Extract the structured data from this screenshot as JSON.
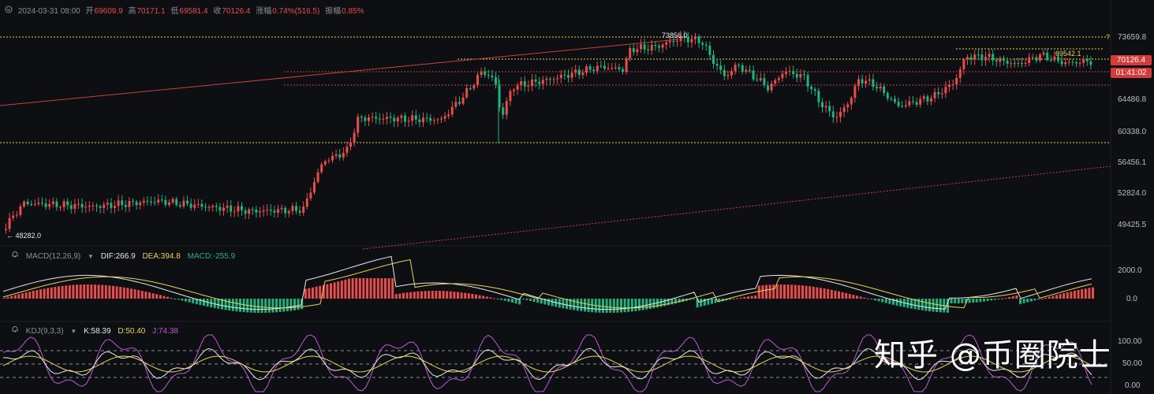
{
  "header": {
    "datetime": "2024-03-31 08:00",
    "open_label": "开",
    "open": "69609.9",
    "high_label": "高",
    "high": "70171.1",
    "low_label": "低",
    "low": "69581.4",
    "close_label": "收",
    "close": "70126.4",
    "change_label": "涨幅",
    "change": "0.74%(516.5)",
    "amp_label": "振幅",
    "amp": "0.85%"
  },
  "price_axis": {
    "ticks": [
      "73659.8",
      "64486.8",
      "60338.0",
      "56456.1",
      "52824.0",
      "49425.5"
    ],
    "current_price": "70126.4",
    "countdown": "01:41:02"
  },
  "annotations": {
    "high_marker": "73856.0",
    "low_marker": "← 48282.0",
    "right_level": "69542.1",
    "question_mark": "?"
  },
  "macd": {
    "name": "MACD(12,26,9)",
    "dif": "DIF:266.9",
    "dea": "DEA:394.8",
    "macd": "MACD:-255.9",
    "ticks": [
      "2000.0",
      "0.0"
    ]
  },
  "kdj": {
    "name": "KDJ(9,3,3)",
    "k": "K:58.39",
    "d": "D:50.40",
    "j": "J:74.38",
    "ticks": [
      "100.00",
      "50.00",
      "0.00"
    ]
  },
  "watermark": "知乎 @币圈院士",
  "colors": {
    "up": "#e84d4d",
    "down": "#22b07d",
    "dif": "#e8e8e8",
    "dea": "#e6d35a",
    "k": "#e8e8e8",
    "d": "#e6d35a",
    "j": "#c05ad6",
    "price_tag": "#d63b3b"
  }
}
